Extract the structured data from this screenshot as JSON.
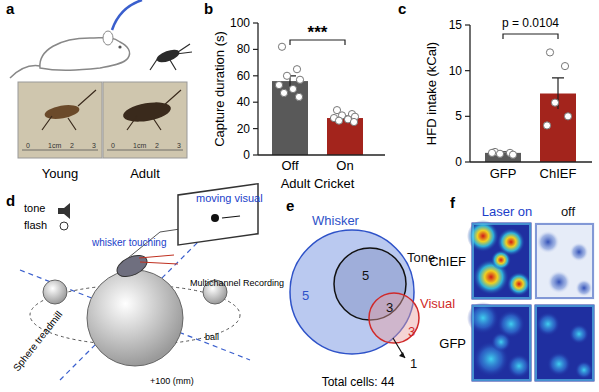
{
  "chart_data": [
    {
      "type": "bar",
      "panel_label": "b",
      "categories": [
        "Off",
        "On"
      ],
      "xlabel": "Adult Cricket",
      "ylabel": "Capture duration (s)",
      "values": [
        56,
        28
      ],
      "errors": [
        4,
        1.5
      ],
      "points": [
        [
          82,
          65,
          60,
          57,
          53,
          50,
          47,
          44
        ],
        [
          34,
          31,
          30,
          29,
          28,
          27,
          26,
          25
        ]
      ],
      "colors": [
        "#595959",
        "#a3241c"
      ],
      "ylim": [
        0,
        100
      ],
      "yticks": [
        0,
        20,
        40,
        60,
        80,
        100
      ],
      "annotation": "***"
    },
    {
      "type": "bar",
      "panel_label": "c",
      "categories": [
        "GFP",
        "ChIEF"
      ],
      "ylabel": "HFD intake (kCal)",
      "values": [
        1,
        7.5
      ],
      "errors": [
        0.1,
        1.7
      ],
      "points": [
        [
          1.1,
          1.0,
          0.9,
          0.8,
          1.0
        ],
        [
          12,
          10.5,
          6.5,
          5,
          4
        ]
      ],
      "colors": [
        "#595959",
        "#a3241c"
      ],
      "ylim": [
        0,
        15
      ],
      "yticks": [
        0,
        5,
        10,
        15
      ],
      "annotation": "p = 0.0104"
    }
  ],
  "panel_a": {
    "label": "a",
    "photos": [
      "Young",
      "Adult"
    ],
    "ruler": [
      "0",
      "1cm",
      "2",
      "3"
    ]
  },
  "panel_d": {
    "label": "d",
    "texts": [
      "tone",
      "flash",
      "moving visual",
      "whisker touching",
      "Multichannel Recording",
      "Sphere treadmill",
      "ball",
      "+100 (mm)"
    ]
  },
  "panel_e": {
    "label": "e",
    "sets": [
      "Whisker",
      "Tone",
      "Visual"
    ],
    "counts": [
      5,
      5,
      3,
      3,
      1
    ],
    "total": "Total cells: 44"
  },
  "panel_f": {
    "label": "f",
    "columns": [
      "Laser on",
      "off"
    ],
    "rows": [
      "ChIEF",
      "GFP"
    ]
  }
}
